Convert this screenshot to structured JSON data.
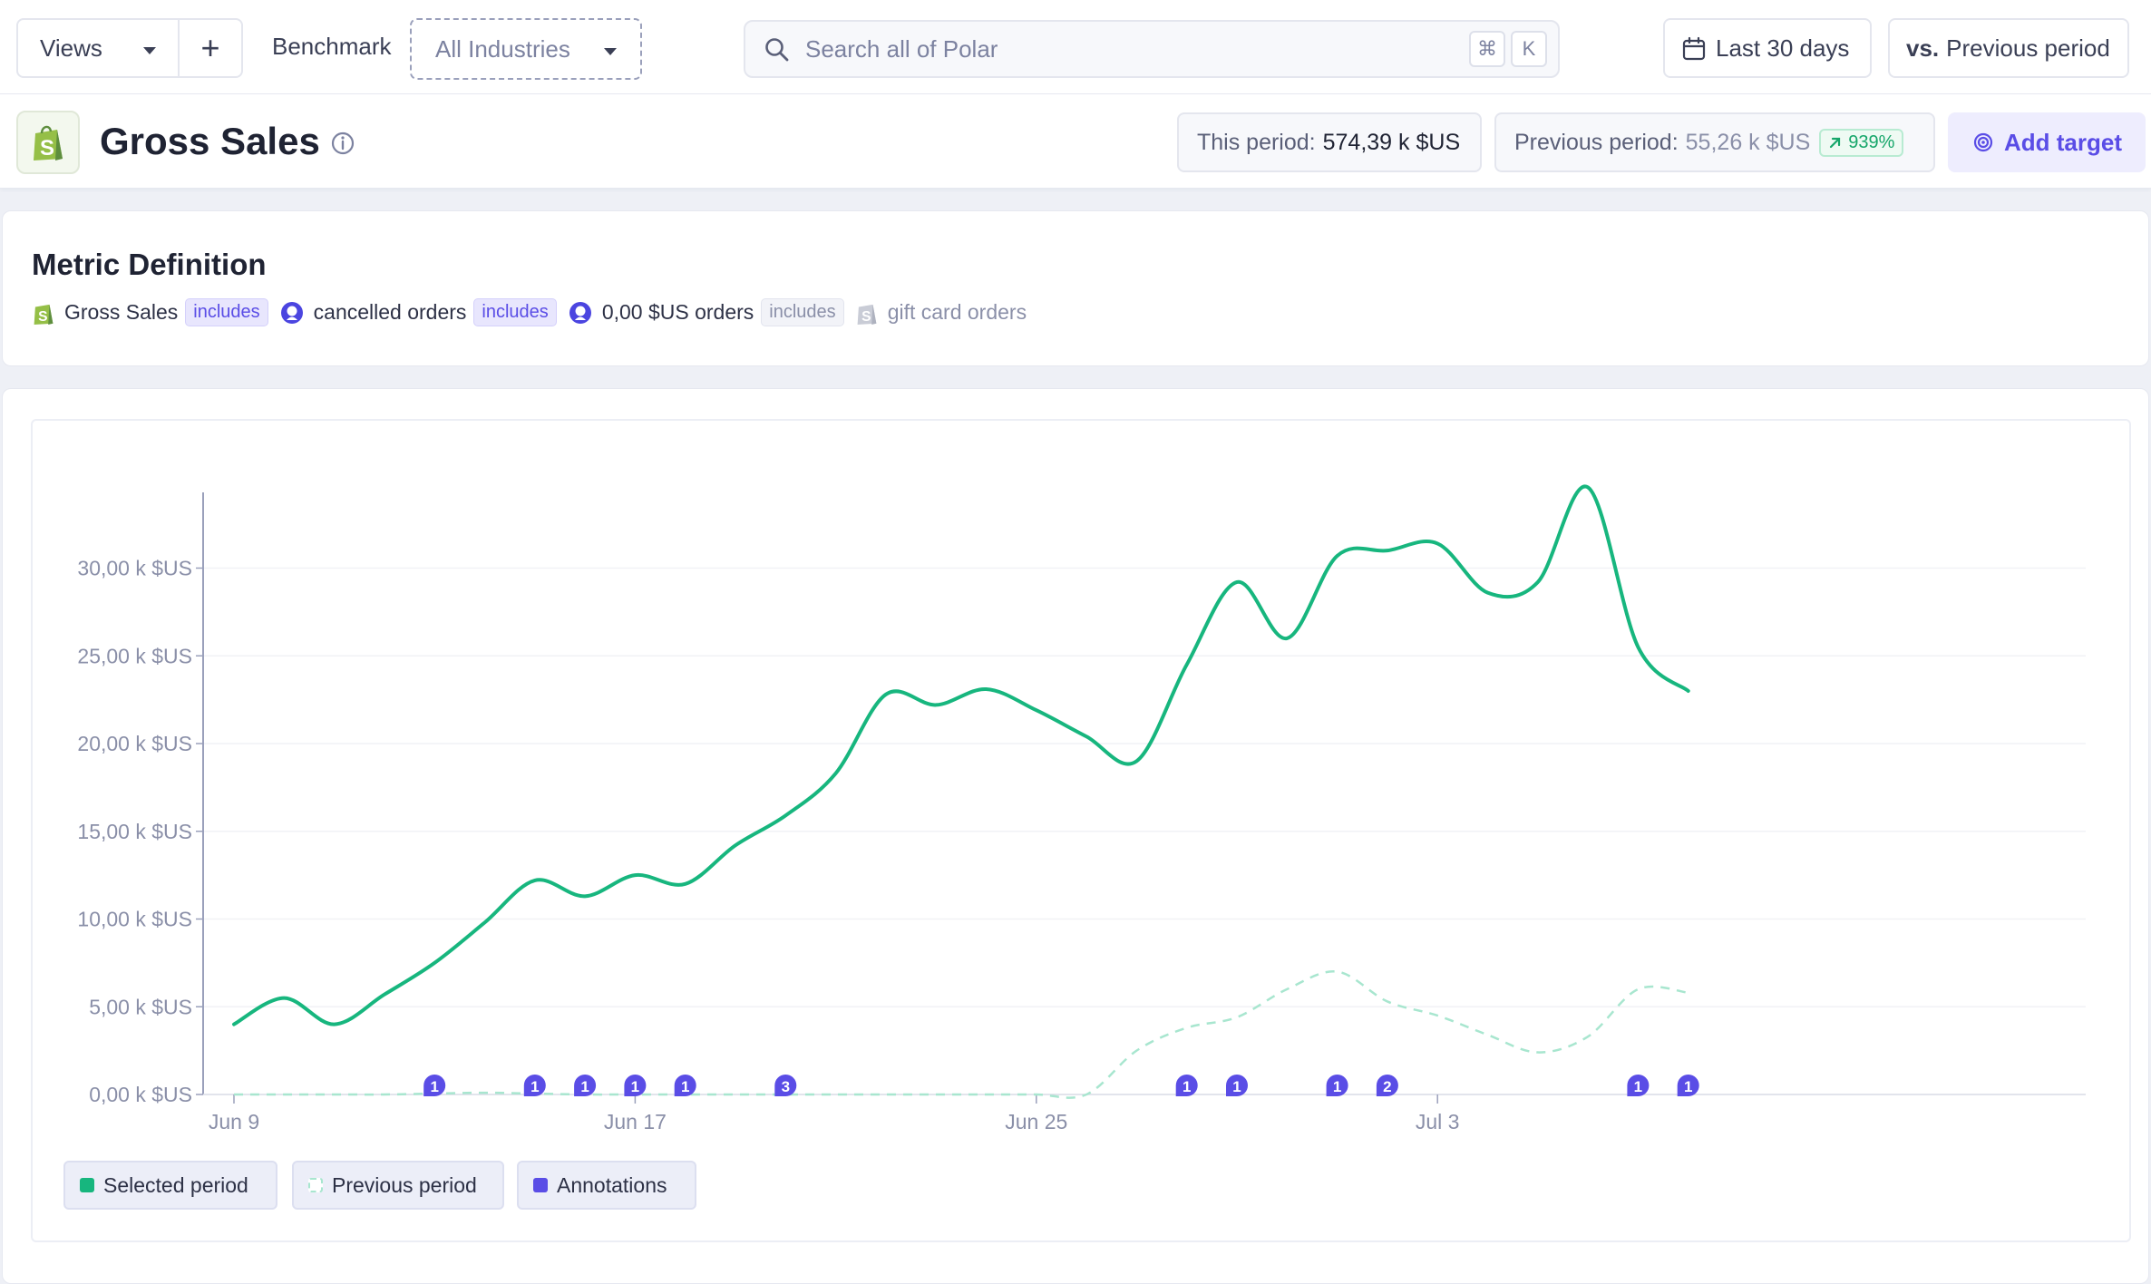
{
  "topbar": {
    "views_label": "Views",
    "add_label": "+",
    "benchmark_label": "Benchmark",
    "benchmark_value": "All Industries",
    "search_placeholder": "Search all of Polar",
    "shortcut_keys": [
      "⌘",
      "K"
    ],
    "date_range": "Last 30 days",
    "compare_prefix": "vs.",
    "compare_value": "Previous period"
  },
  "header": {
    "title": "Gross Sales",
    "this_period_label": "This period:",
    "this_period_value": "574,39 k $US",
    "previous_period_label": "Previous period:",
    "previous_period_value": "55,26 k $US",
    "change_badge": "939%",
    "add_target_label": "Add target"
  },
  "metric_definition": {
    "title": "Metric Definition",
    "source": "Gross Sales",
    "rules": [
      {
        "state": "includes",
        "label": "cancelled orders",
        "active": true
      },
      {
        "state": "includes",
        "label": "0,00 $US orders",
        "active": true
      },
      {
        "state": "includes",
        "label": "gift card orders",
        "active": false
      }
    ]
  },
  "chart_data": {
    "type": "line",
    "y_ticks": [
      "0,00 k $US",
      "5,00 k $US",
      "10,00 k $US",
      "15,00 k $US",
      "20,00 k $US",
      "25,00 k $US",
      "30,00 k $US"
    ],
    "ylim": [
      0,
      34
    ],
    "x_ticks": [
      {
        "label": "Jun 9",
        "day": 0
      },
      {
        "label": "Jun 17",
        "day": 8
      },
      {
        "label": "Jun 25",
        "day": 16
      },
      {
        "label": "Jul 3",
        "day": 24
      }
    ],
    "series": [
      {
        "name": "Selected period",
        "color": "#17b67e",
        "values": [
          4.0,
          5.5,
          4.0,
          5.7,
          7.5,
          9.8,
          12.2,
          11.3,
          12.5,
          12.0,
          14.2,
          15.9,
          18.3,
          22.8,
          22.2,
          23.1,
          21.9,
          20.4,
          19.0,
          24.5,
          29.2,
          26.0,
          30.7,
          31.0,
          31.4,
          28.6,
          29.2,
          34.6,
          25.5,
          23.0
        ]
      },
      {
        "name": "Previous period",
        "color": "#a8e6cf",
        "values": [
          0,
          0,
          0,
          0,
          0.05,
          0.1,
          0.05,
          0,
          0,
          0,
          0,
          0,
          0,
          0,
          0,
          0,
          0,
          0,
          2.5,
          3.8,
          4.4,
          6.0,
          7.0,
          5.3,
          4.5,
          3.4,
          2.4,
          3.3,
          6.0,
          5.8
        ]
      }
    ],
    "annotations": [
      {
        "day": 4,
        "count": "1"
      },
      {
        "day": 6,
        "count": "1"
      },
      {
        "day": 7,
        "count": "1"
      },
      {
        "day": 8,
        "count": "1"
      },
      {
        "day": 9,
        "count": "1"
      },
      {
        "day": 11,
        "count": "3"
      },
      {
        "day": 19,
        "count": "1"
      },
      {
        "day": 20,
        "count": "1"
      },
      {
        "day": 22,
        "count": "1"
      },
      {
        "day": 23,
        "count": "2"
      },
      {
        "day": 28,
        "count": "1"
      },
      {
        "day": 29,
        "count": "1"
      }
    ],
    "legend": [
      "Selected period",
      "Previous period",
      "Annotations"
    ],
    "annotation_color": "#5a4de6"
  }
}
